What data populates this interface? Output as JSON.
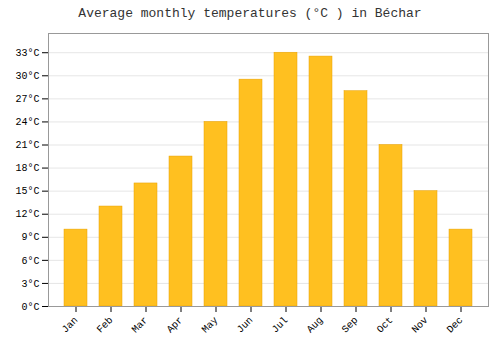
{
  "chart_data": {
    "type": "bar",
    "title": "Average monthly temperatures (°C ) in Béchar",
    "categories": [
      "Jan",
      "Feb",
      "Mar",
      "Apr",
      "May",
      "Jun",
      "Jul",
      "Aug",
      "Sep",
      "Oct",
      "Nov",
      "Dec"
    ],
    "values": [
      10,
      13,
      16,
      19.5,
      24,
      29.5,
      33,
      32.5,
      28,
      21,
      15,
      10
    ],
    "color": "#FFC020",
    "ylim": [
      0,
      35.5
    ],
    "yticks": [
      {
        "value": 0,
        "label": "0°C"
      },
      {
        "value": 3,
        "label": "3°C"
      },
      {
        "value": 6,
        "label": "6°C"
      },
      {
        "value": 9,
        "label": "9°C"
      },
      {
        "value": 12,
        "label": "12°C"
      },
      {
        "value": 15,
        "label": "15°C"
      },
      {
        "value": 18,
        "label": "18°C"
      },
      {
        "value": 21,
        "label": "21°C"
      },
      {
        "value": 24,
        "label": "24°C"
      },
      {
        "value": 27,
        "label": "27°C"
      },
      {
        "value": 30,
        "label": "30°C"
      },
      {
        "value": 33,
        "label": "33°C"
      }
    ],
    "grid": true
  }
}
